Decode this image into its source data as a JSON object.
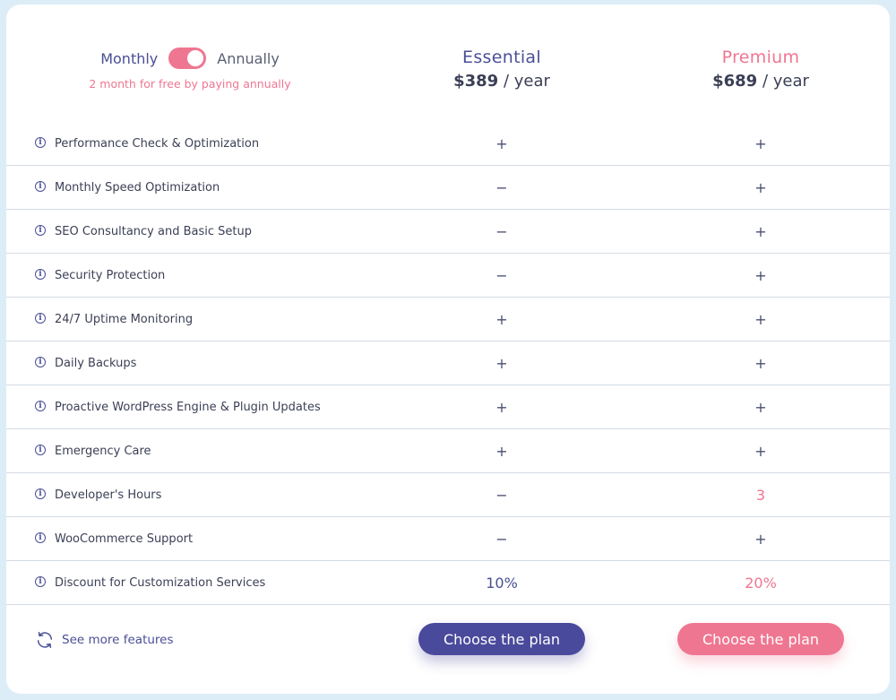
{
  "billing": {
    "monthly_label": "Monthly",
    "annually_label": "Annually",
    "promo": "2 month for free by paying annually",
    "annual_selected": true
  },
  "plans": [
    {
      "name": "Essential",
      "price": "$389",
      "period": "/ year",
      "cta": "Choose the plan",
      "color": "#4a4a9c"
    },
    {
      "name": "Premium",
      "price": "$689",
      "period": "/ year",
      "cta": "Choose the plan",
      "color": "#ef7691"
    }
  ],
  "features": [
    {
      "name": "Performance Check & Optimization",
      "essential": "+",
      "premium": "+"
    },
    {
      "name": "Monthly Speed Optimization",
      "essential": "−",
      "premium": "+"
    },
    {
      "name": "SEO Consultancy and Basic Setup",
      "essential": "−",
      "premium": "+"
    },
    {
      "name": "Security Protection",
      "essential": "−",
      "premium": "+"
    },
    {
      "name": "24/7 Uptime Monitoring",
      "essential": "+",
      "premium": "+"
    },
    {
      "name": "Daily Backups",
      "essential": "+",
      "premium": "+"
    },
    {
      "name": "Proactive WordPress Engine & Plugin Updates",
      "essential": "+",
      "premium": "+"
    },
    {
      "name": "Emergency Care",
      "essential": "+",
      "premium": "+"
    },
    {
      "name": "Developer's Hours",
      "essential": "−",
      "premium": "3"
    },
    {
      "name": "WooCommerce Support",
      "essential": "−",
      "premium": "+"
    },
    {
      "name": "Discount for Customization Services",
      "essential": "10%",
      "premium": "20%"
    }
  ],
  "footer": {
    "see_more": "See more features",
    "icon": "refresh-icon"
  }
}
